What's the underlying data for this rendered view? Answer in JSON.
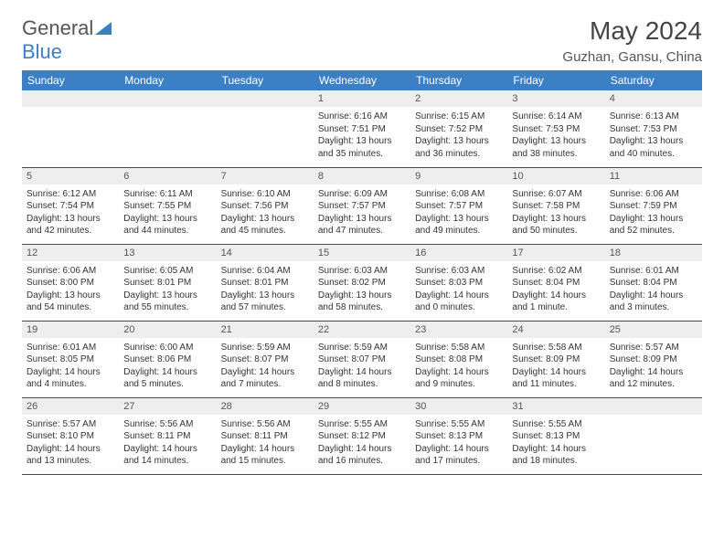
{
  "logo": {
    "word1": "General",
    "word2": "Blue"
  },
  "header": {
    "title": "May 2024",
    "location": "Guzhan, Gansu, China"
  },
  "weekdays": [
    "Sunday",
    "Monday",
    "Tuesday",
    "Wednesday",
    "Thursday",
    "Friday",
    "Saturday"
  ],
  "colors": {
    "header_bg": "#3b7fc4",
    "header_text": "#ffffff",
    "daynum_bg": "#eeeeee",
    "border": "#2d4f7a",
    "body_text": "#333333"
  },
  "fonts": {
    "title_size": 28,
    "location_size": 15,
    "weekday_size": 12,
    "daynum_size": 11,
    "body_size": 10
  },
  "weeks": [
    [
      null,
      null,
      null,
      {
        "n": "1",
        "sr": "6:16 AM",
        "ss": "7:51 PM",
        "dl": "13 hours and 35 minutes."
      },
      {
        "n": "2",
        "sr": "6:15 AM",
        "ss": "7:52 PM",
        "dl": "13 hours and 36 minutes."
      },
      {
        "n": "3",
        "sr": "6:14 AM",
        "ss": "7:53 PM",
        "dl": "13 hours and 38 minutes."
      },
      {
        "n": "4",
        "sr": "6:13 AM",
        "ss": "7:53 PM",
        "dl": "13 hours and 40 minutes."
      }
    ],
    [
      {
        "n": "5",
        "sr": "6:12 AM",
        "ss": "7:54 PM",
        "dl": "13 hours and 42 minutes."
      },
      {
        "n": "6",
        "sr": "6:11 AM",
        "ss": "7:55 PM",
        "dl": "13 hours and 44 minutes."
      },
      {
        "n": "7",
        "sr": "6:10 AM",
        "ss": "7:56 PM",
        "dl": "13 hours and 45 minutes."
      },
      {
        "n": "8",
        "sr": "6:09 AM",
        "ss": "7:57 PM",
        "dl": "13 hours and 47 minutes."
      },
      {
        "n": "9",
        "sr": "6:08 AM",
        "ss": "7:57 PM",
        "dl": "13 hours and 49 minutes."
      },
      {
        "n": "10",
        "sr": "6:07 AM",
        "ss": "7:58 PM",
        "dl": "13 hours and 50 minutes."
      },
      {
        "n": "11",
        "sr": "6:06 AM",
        "ss": "7:59 PM",
        "dl": "13 hours and 52 minutes."
      }
    ],
    [
      {
        "n": "12",
        "sr": "6:06 AM",
        "ss": "8:00 PM",
        "dl": "13 hours and 54 minutes."
      },
      {
        "n": "13",
        "sr": "6:05 AM",
        "ss": "8:01 PM",
        "dl": "13 hours and 55 minutes."
      },
      {
        "n": "14",
        "sr": "6:04 AM",
        "ss": "8:01 PM",
        "dl": "13 hours and 57 minutes."
      },
      {
        "n": "15",
        "sr": "6:03 AM",
        "ss": "8:02 PM",
        "dl": "13 hours and 58 minutes."
      },
      {
        "n": "16",
        "sr": "6:03 AM",
        "ss": "8:03 PM",
        "dl": "14 hours and 0 minutes."
      },
      {
        "n": "17",
        "sr": "6:02 AM",
        "ss": "8:04 PM",
        "dl": "14 hours and 1 minute."
      },
      {
        "n": "18",
        "sr": "6:01 AM",
        "ss": "8:04 PM",
        "dl": "14 hours and 3 minutes."
      }
    ],
    [
      {
        "n": "19",
        "sr": "6:01 AM",
        "ss": "8:05 PM",
        "dl": "14 hours and 4 minutes."
      },
      {
        "n": "20",
        "sr": "6:00 AM",
        "ss": "8:06 PM",
        "dl": "14 hours and 5 minutes."
      },
      {
        "n": "21",
        "sr": "5:59 AM",
        "ss": "8:07 PM",
        "dl": "14 hours and 7 minutes."
      },
      {
        "n": "22",
        "sr": "5:59 AM",
        "ss": "8:07 PM",
        "dl": "14 hours and 8 minutes."
      },
      {
        "n": "23",
        "sr": "5:58 AM",
        "ss": "8:08 PM",
        "dl": "14 hours and 9 minutes."
      },
      {
        "n": "24",
        "sr": "5:58 AM",
        "ss": "8:09 PM",
        "dl": "14 hours and 11 minutes."
      },
      {
        "n": "25",
        "sr": "5:57 AM",
        "ss": "8:09 PM",
        "dl": "14 hours and 12 minutes."
      }
    ],
    [
      {
        "n": "26",
        "sr": "5:57 AM",
        "ss": "8:10 PM",
        "dl": "14 hours and 13 minutes."
      },
      {
        "n": "27",
        "sr": "5:56 AM",
        "ss": "8:11 PM",
        "dl": "14 hours and 14 minutes."
      },
      {
        "n": "28",
        "sr": "5:56 AM",
        "ss": "8:11 PM",
        "dl": "14 hours and 15 minutes."
      },
      {
        "n": "29",
        "sr": "5:55 AM",
        "ss": "8:12 PM",
        "dl": "14 hours and 16 minutes."
      },
      {
        "n": "30",
        "sr": "5:55 AM",
        "ss": "8:13 PM",
        "dl": "14 hours and 17 minutes."
      },
      {
        "n": "31",
        "sr": "5:55 AM",
        "ss": "8:13 PM",
        "dl": "14 hours and 18 minutes."
      },
      null
    ]
  ]
}
